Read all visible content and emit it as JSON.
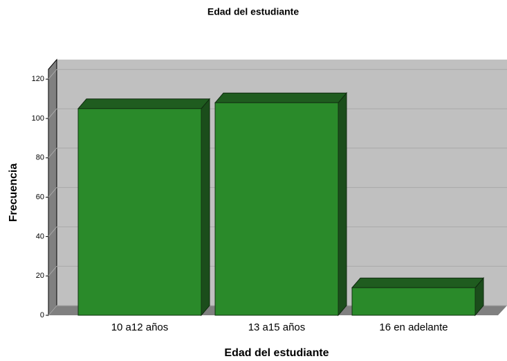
{
  "chart_data": {
    "type": "bar",
    "title": "Edad del estudiante",
    "x_label": "Edad del estudiante",
    "y_label": "Frecuencia",
    "categories": [
      "10 a12 años",
      "13 a15 años",
      "16 en adelante"
    ],
    "values": [
      105,
      108,
      14
    ],
    "color": "#2a8a2a",
    "ylim": [
      0,
      125
    ],
    "yticks": [
      0,
      20,
      40,
      60,
      80,
      100,
      120
    ],
    "grid": true
  }
}
